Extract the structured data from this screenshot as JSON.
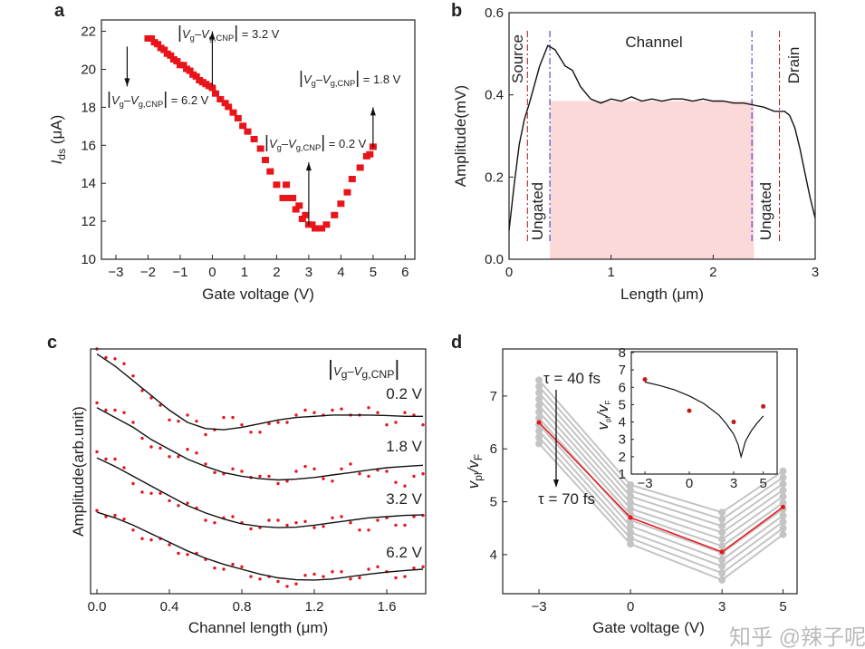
{
  "watermark": "知乎 @辣子呢",
  "colors": {
    "red": "#e8141a",
    "gray": "#c4c4c4",
    "blue": "#2a2ad0",
    "darkred": "#b01010",
    "shade": "#fcd9d9",
    "inset_dot": "#c41a1a"
  },
  "chart_data": [
    {
      "panel": "a",
      "type": "scatter",
      "xlabel": "Gate voltage (V)",
      "ylabel_main": "I",
      "ylabel_sub": "ds",
      "ylabel_unit": " (μA)",
      "xlim": [
        -3.45,
        6.3
      ],
      "ylim": [
        10,
        22.6
      ],
      "xticks": [
        -3,
        -2,
        -1,
        0,
        1,
        2,
        3,
        4,
        5,
        6
      ],
      "yticks": [
        10,
        12,
        14,
        16,
        18,
        20,
        22
      ],
      "marker": "square",
      "x": [
        -2.0,
        -1.9,
        -1.8,
        -1.7,
        -1.6,
        -1.5,
        -1.4,
        -1.3,
        -1.2,
        -1.1,
        -1.0,
        -0.9,
        -0.8,
        -0.7,
        -0.6,
        -0.5,
        -0.4,
        -0.3,
        -0.2,
        -0.1,
        0,
        0.1,
        0.25,
        0.4,
        0.5,
        0.65,
        0.8,
        0.95,
        1.1,
        1.3,
        1.5,
        1.65,
        1.8,
        2.0,
        2.2,
        2.3,
        2.4,
        2.5,
        2.6,
        2.7,
        2.8,
        2.9,
        3.0,
        3.1,
        3.2,
        3.3,
        3.4,
        3.55,
        3.8,
        4.0,
        4.2,
        4.35,
        4.6,
        4.8,
        4.9,
        5.0
      ],
      "y": [
        21.6,
        21.6,
        21.4,
        21.3,
        21.1,
        21.0,
        20.8,
        20.7,
        20.5,
        20.4,
        20.2,
        20.2,
        20.0,
        19.9,
        19.7,
        19.6,
        19.4,
        19.3,
        19.2,
        19.1,
        19.0,
        18.7,
        18.4,
        18.2,
        18.0,
        17.7,
        17.4,
        17.0,
        16.7,
        16.3,
        15.8,
        15.2,
        14.6,
        13.9,
        13.2,
        13.9,
        13.2,
        13.2,
        12.6,
        12.8,
        12.1,
        12.3,
        11.8,
        11.8,
        11.6,
        11.6,
        11.6,
        11.8,
        12.3,
        12.9,
        13.5,
        14.2,
        14.8,
        15.4,
        15.5,
        15.9
      ],
      "annotation_parts": {
        "v": "V",
        "g": "g",
        "dash": "–",
        "gcnp": "g,CNP"
      },
      "annotations": [
        {
          "text": "= 3.2 V",
          "arrow": "up",
          "x": 0,
          "from": 19.1,
          "to": 22.0
        },
        {
          "text": "= 6.2 V",
          "arrow": "down",
          "x": -2.65,
          "from": 21.2,
          "to": 19.1
        },
        {
          "text": "= 1.8 V",
          "arrow": "up",
          "x": 5.0,
          "from": 15.9,
          "to": 18.0
        },
        {
          "text": "= 0.2 V",
          "arrow": "up",
          "x": 3.0,
          "from": 11.8,
          "to": 15.1
        }
      ]
    },
    {
      "panel": "b",
      "type": "line",
      "xlabel": "Length (μm)",
      "ylabel": "Amplitude(mV)",
      "xlim": [
        0,
        3
      ],
      "ylim": [
        0,
        0.6
      ],
      "xticks": [
        0,
        1,
        2,
        3
      ],
      "yticks": [
        0.0,
        0.2,
        0.4,
        0.6
      ],
      "ytick_labels": [
        "0.0",
        "0.2",
        "0.4",
        "0.6"
      ],
      "x": [
        0,
        0.05,
        0.1,
        0.15,
        0.2,
        0.3,
        0.38,
        0.45,
        0.55,
        0.62,
        0.7,
        0.8,
        0.9,
        1.0,
        1.1,
        1.2,
        1.3,
        1.4,
        1.5,
        1.6,
        1.7,
        1.8,
        1.9,
        2.0,
        2.1,
        2.2,
        2.3,
        2.4,
        2.5,
        2.6,
        2.7,
        2.75,
        2.8,
        2.85,
        2.9,
        2.95,
        3.0
      ],
      "y": [
        0.07,
        0.18,
        0.28,
        0.34,
        0.38,
        0.47,
        0.52,
        0.51,
        0.47,
        0.46,
        0.42,
        0.39,
        0.38,
        0.39,
        0.385,
        0.395,
        0.385,
        0.39,
        0.385,
        0.39,
        0.39,
        0.385,
        0.39,
        0.385,
        0.385,
        0.38,
        0.38,
        0.375,
        0.37,
        0.36,
        0.36,
        0.35,
        0.32,
        0.27,
        0.21,
        0.15,
        0.1
      ],
      "shaded_region": {
        "x": [
          0.4,
          2.4
        ],
        "y": [
          0,
          0.385
        ]
      },
      "red_lines_x": [
        0.18,
        2.65
      ],
      "blue_lines_x": [
        0.4,
        2.38
      ],
      "labels": {
        "source": "Source",
        "drain": "Drain",
        "channel": "Channel",
        "ungated_left": "Ungated",
        "ungated_right": "Ungated"
      }
    },
    {
      "panel": "c",
      "type": "line",
      "xlabel": "Channel length (μm)",
      "ylabel": "Amplitude(arb.unit)",
      "xlim": [
        -0.035,
        1.815
      ],
      "ylim": [
        0,
        10
      ],
      "xticks": [
        0.0,
        0.4,
        0.8,
        1.2,
        1.6
      ],
      "xtick_labels": [
        "0.0",
        "0.4",
        "0.8",
        "1.2",
        "1.6"
      ],
      "legend_title_parts": {
        "v": "V",
        "g": "g",
        "dash": "–",
        "gcnp": "g,CNP"
      },
      "x": [
        0,
        0.1,
        0.2,
        0.3,
        0.4,
        0.5,
        0.6,
        0.7,
        0.8,
        0.9,
        1.0,
        1.1,
        1.2,
        1.3,
        1.4,
        1.5,
        1.6,
        1.7,
        1.8
      ],
      "series": [
        {
          "name": "0.2 V",
          "fit": [
            9.8,
            9.3,
            8.7,
            8.1,
            7.5,
            7.0,
            6.75,
            6.7,
            6.8,
            6.95,
            7.1,
            7.2,
            7.25,
            7.3,
            7.3,
            7.3,
            7.28,
            7.25,
            7.25
          ],
          "measured": [
            10.0,
            9.6,
            8.9,
            8.0,
            7.1,
            7.3,
            6.5,
            7.2,
            6.9,
            6.6,
            7.0,
            7.3,
            7.4,
            7.5,
            7.3,
            7.6,
            6.9,
            7.4,
            6.9
          ]
        },
        {
          "name": "1.8 V",
          "fit": [
            7.6,
            7.2,
            6.8,
            6.3,
            5.9,
            5.5,
            5.2,
            4.95,
            4.8,
            4.7,
            4.65,
            4.68,
            4.75,
            4.85,
            4.95,
            5.05,
            5.15,
            5.2,
            5.25
          ],
          "measured": [
            7.8,
            7.5,
            7.0,
            6.0,
            5.6,
            5.9,
            5.3,
            4.9,
            5.0,
            4.8,
            4.5,
            5.0,
            5.1,
            4.6,
            5.3,
            4.8,
            5.0,
            4.4,
            4.9
          ]
        },
        {
          "name": "3.2 V",
          "fit": [
            5.55,
            5.2,
            4.8,
            4.4,
            4.0,
            3.6,
            3.3,
            3.05,
            2.85,
            2.75,
            2.7,
            2.72,
            2.8,
            2.9,
            3.0,
            3.1,
            3.15,
            3.2,
            3.22
          ],
          "measured": [
            5.8,
            5.5,
            4.5,
            4.1,
            3.8,
            3.7,
            3.0,
            3.1,
            2.9,
            2.7,
            3.0,
            2.9,
            2.7,
            3.1,
            2.9,
            2.6,
            3.1,
            2.8,
            3.2
          ]
        },
        {
          "name": "6.2 V",
          "fit": [
            3.33,
            3.1,
            2.8,
            2.45,
            2.1,
            1.75,
            1.45,
            1.2,
            1.0,
            0.8,
            0.65,
            0.57,
            0.56,
            0.6,
            0.7,
            0.8,
            0.88,
            0.95,
            1.0
          ],
          "measured": [
            3.4,
            3.2,
            2.6,
            2.2,
            2.0,
            1.6,
            1.4,
            1.0,
            1.1,
            0.6,
            0.5,
            0.4,
            0.8,
            0.9,
            0.6,
            1.0,
            0.9,
            0.7,
            1.1
          ]
        }
      ]
    },
    {
      "panel": "d",
      "type": "line",
      "xlabel": "Gate voltage (V)",
      "ylabel_main": "v",
      "ylabel_sub1": "pl",
      "ylabel_mid": "/v",
      "ylabel_sub2": "F",
      "xlim": [
        -4.19,
        5.46
      ],
      "ylim": [
        3.26,
        7.89
      ],
      "x": [
        -3,
        0,
        3,
        5
      ],
      "xticks": [
        -3,
        0,
        3,
        5
      ],
      "xtick_labels": [
        "−3",
        "0",
        "3",
        "5"
      ],
      "yticks": [
        4,
        5,
        6,
        7
      ],
      "gray_series": [
        [
          7.3,
          5.32,
          4.8,
          5.58
        ],
        [
          7.18,
          5.21,
          4.67,
          5.46
        ],
        [
          7.06,
          5.1,
          4.54,
          5.34
        ],
        [
          6.94,
          4.98,
          4.42,
          5.22
        ],
        [
          6.82,
          4.87,
          4.29,
          5.1
        ],
        [
          6.7,
          4.76,
          4.16,
          4.98
        ],
        [
          6.58,
          4.65,
          4.03,
          4.86
        ],
        [
          6.46,
          4.54,
          3.9,
          4.74
        ],
        [
          6.34,
          4.42,
          3.78,
          4.62
        ],
        [
          6.22,
          4.31,
          3.65,
          4.5
        ],
        [
          6.1,
          4.2,
          3.52,
          4.38
        ]
      ],
      "red_series": [
        6.5,
        4.7,
        4.05,
        4.9
      ],
      "tau_top": "τ = 40 fs",
      "tau_bottom": "τ = 70 fs",
      "inset": {
        "type": "scatter+line",
        "ylabel_main": "v",
        "ylabel_sub1": "pl",
        "ylabel_mid": "/v",
        "ylabel_sub2": "F",
        "xlim": [
          -3.92,
          5.94
        ],
        "ylim": [
          1,
          8.05
        ],
        "xticks": [
          -3,
          0,
          3,
          5
        ],
        "xtick_labels": [
          "−3",
          "0",
          "3",
          "5"
        ],
        "yticks": [
          1,
          2,
          3,
          4,
          5,
          6,
          7,
          8
        ],
        "points_x": [
          -3,
          0,
          3,
          5
        ],
        "points_y": [
          6.45,
          4.65,
          4.0,
          4.9
        ],
        "curve_x": [
          -3,
          -2,
          -1,
          0,
          1,
          2,
          2.5,
          3,
          3.3,
          3.5,
          3.6,
          3.8,
          4.2,
          4.6,
          5
        ],
        "curve_y": [
          6.3,
          6.1,
          5.85,
          5.5,
          5.05,
          4.4,
          3.9,
          3.3,
          2.7,
          2.0,
          2.3,
          2.9,
          3.5,
          3.95,
          4.35
        ]
      }
    }
  ]
}
